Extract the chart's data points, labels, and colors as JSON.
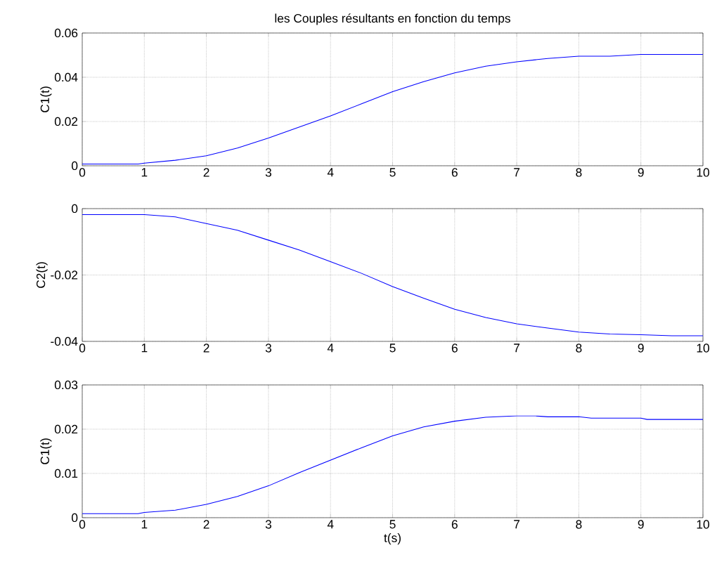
{
  "chart_data": [
    {
      "type": "line",
      "title": "les Couples résultants en fonction du temps",
      "ylabel": "C1(t)",
      "grid": true,
      "x": [
        0,
        0.5,
        0.9,
        1,
        1.5,
        2,
        2.5,
        3,
        3.5,
        4,
        4.5,
        5,
        5.5,
        6,
        6.5,
        7,
        7.5,
        8,
        8.5,
        9,
        9.5,
        10
      ],
      "series": [
        {
          "color": "#0000ff",
          "values": [
            0.0008,
            0.0008,
            0.0008,
            0.0012,
            0.0025,
            0.0045,
            0.008,
            0.0125,
            0.0175,
            0.0225,
            0.028,
            0.0335,
            0.038,
            0.042,
            0.045,
            0.047,
            0.0485,
            0.0495,
            0.0495,
            0.0503,
            0.0503,
            0.0503
          ]
        }
      ],
      "xlim": [
        0,
        10
      ],
      "ylim": [
        0,
        0.06
      ],
      "xticks": [
        0,
        1,
        2,
        3,
        4,
        5,
        6,
        7,
        8,
        9,
        10
      ],
      "yticks": [
        0,
        0.02,
        0.04,
        0.06
      ]
    },
    {
      "type": "line",
      "ylabel": "C2(t)",
      "grid": true,
      "x": [
        0,
        0.5,
        1,
        1.5,
        2,
        2.5,
        3,
        3.5,
        4,
        4.5,
        5,
        5.5,
        6,
        6.5,
        7,
        7.5,
        8,
        8.5,
        9,
        9.5,
        10
      ],
      "series": [
        {
          "color": "#0000ff",
          "values": [
            -0.0018,
            -0.0018,
            -0.0018,
            -0.0025,
            -0.0045,
            -0.0065,
            -0.0095,
            -0.0125,
            -0.016,
            -0.0195,
            -0.0235,
            -0.027,
            -0.0303,
            -0.0328,
            -0.0347,
            -0.036,
            -0.0372,
            -0.0378,
            -0.038,
            -0.0383,
            -0.0383
          ]
        }
      ],
      "xlim": [
        0,
        10
      ],
      "ylim": [
        -0.04,
        0
      ],
      "xticks": [
        0,
        1,
        2,
        3,
        4,
        5,
        6,
        7,
        8,
        9,
        10
      ],
      "yticks": [
        -0.04,
        -0.02,
        0
      ]
    },
    {
      "type": "line",
      "xlabel": "t(s)",
      "ylabel": "C1(t)",
      "grid": true,
      "x": [
        0,
        0.5,
        0.9,
        1,
        1.5,
        2,
        2.5,
        3,
        3.5,
        4,
        4.5,
        5,
        5.5,
        6,
        6.5,
        7,
        7.3,
        7.5,
        8,
        8.2,
        9,
        9.1,
        10
      ],
      "series": [
        {
          "color": "#0000ff",
          "values": [
            0.0009,
            0.0009,
            0.0009,
            0.0012,
            0.0017,
            0.003,
            0.0048,
            0.0072,
            0.0102,
            0.013,
            0.0158,
            0.0185,
            0.0205,
            0.0218,
            0.0227,
            0.023,
            0.023,
            0.0228,
            0.0228,
            0.0225,
            0.0225,
            0.0222,
            0.0222
          ]
        }
      ],
      "xlim": [
        0,
        10
      ],
      "ylim": [
        0,
        0.03
      ],
      "xticks": [
        0,
        1,
        2,
        3,
        4,
        5,
        6,
        7,
        8,
        9,
        10
      ],
      "yticks": [
        0,
        0.01,
        0.02,
        0.03
      ]
    }
  ]
}
